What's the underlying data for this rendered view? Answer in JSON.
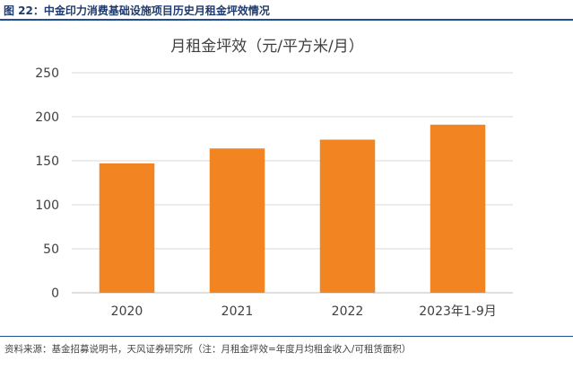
{
  "figure": {
    "label": "图 22：中金印力消费基础设施项目历史月租金坪效情况",
    "source": "资料来源：基金招募说明书，天风证券研究所（注：月租金坪效=年度月均租金收入/可租赁面积）"
  },
  "colors": {
    "bar": "#f28522",
    "header_rule": "#1f4e99",
    "title_text": "#1f3a6d"
  },
  "chart_data": {
    "type": "bar",
    "title": "月租金坪效（元/平方米/月）",
    "categories": [
      "2020",
      "2021",
      "2022",
      "2023年1-9月"
    ],
    "values": [
      147,
      164,
      174,
      191
    ],
    "xlabel": "",
    "ylabel": "",
    "ylim": [
      0,
      250
    ],
    "yticks": [
      "0",
      "50",
      "100",
      "150",
      "200",
      "250"
    ],
    "grid": true,
    "legend": "none"
  }
}
